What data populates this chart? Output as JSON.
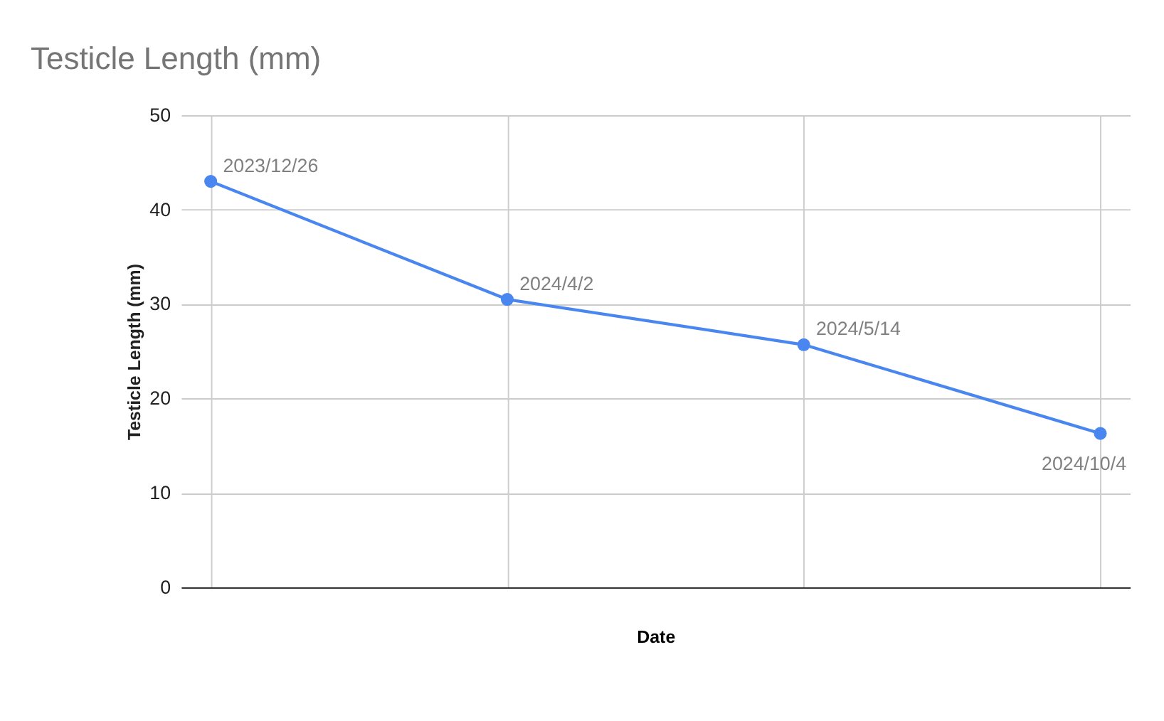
{
  "chart_data": {
    "type": "line",
    "title": "Testicle Length (mm)",
    "xlabel": "Date",
    "ylabel": "Testicle Length (mm)",
    "categories": [
      null,
      null,
      null,
      null
    ],
    "series": [
      {
        "color": "#4a86f0",
        "values": [
          43,
          30.5,
          25.7,
          16.3
        ]
      }
    ],
    "ylim": [
      0,
      50
    ],
    "yticks": [
      0,
      10,
      20,
      30,
      40,
      50
    ],
    "tick_labels": "y",
    "grid": true,
    "marker": "circle",
    "line_style": "solid",
    "annotations": [
      "2023/12/26",
      "2024/4/2",
      "2024/5/14",
      "2024/10/4"
    ]
  }
}
